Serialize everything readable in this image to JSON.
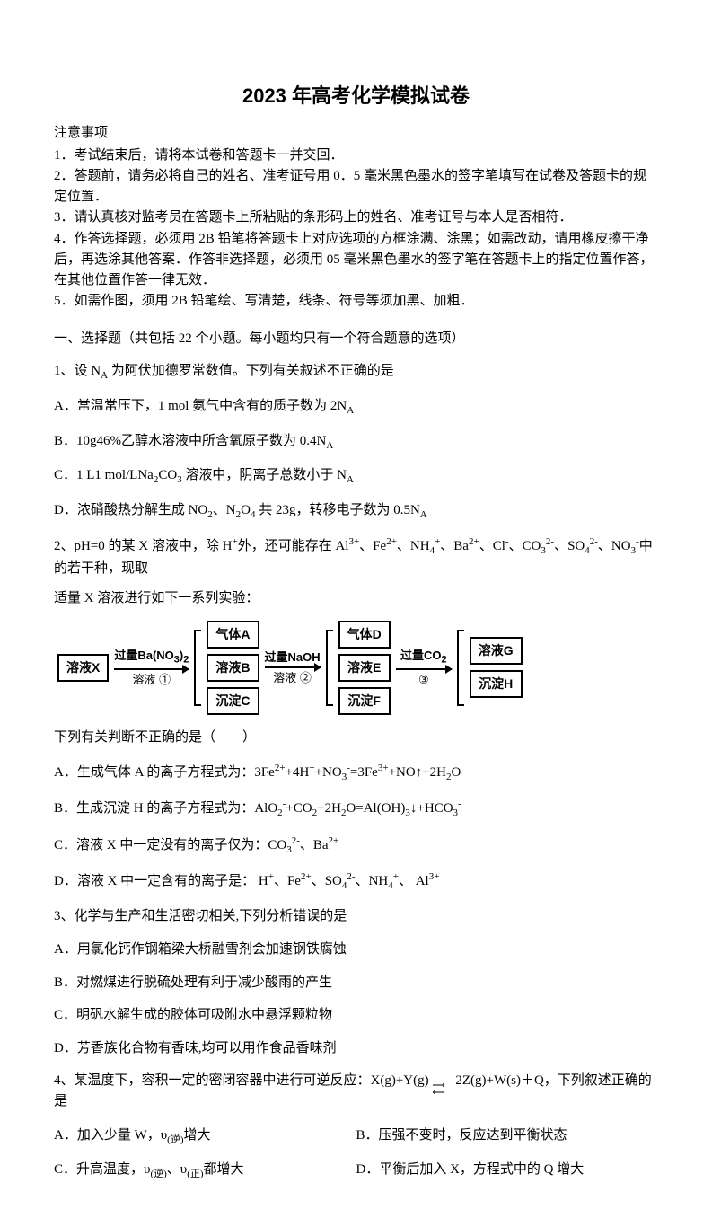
{
  "title": "2023 年高考化学模拟试卷",
  "notice_head": "注意事项",
  "notices": [
    "1．考试结束后，请将本试卷和答题卡一并交回．",
    "2．答题前，请务必将自己的姓名、准考证号用 0．5 毫米黑色墨水的签字笔填写在试卷及答题卡的规定位置．",
    "3．请认真核对监考员在答题卡上所粘贴的条形码上的姓名、准考证号与本人是否相符．",
    "4．作答选择题，必须用 2B 铅笔将答题卡上对应选项的方框涂满、涂黑；如需改动，请用橡皮擦干净后，再选涂其他答案．作答非选择题，必须用 05 毫米黑色墨水的签字笔在答题卡上的指定位置作答，在其他位置作答一律无效．",
    "5．如需作图，须用 2B 铅笔绘、写清楚，线条、符号等须加黑、加粗．"
  ],
  "section1_head": "一、选择题（共包括 22 个小题。每小题均只有一个符合题意的选项）",
  "q1": {
    "stem": "1、设 N<sub>A</sub> 为阿伏加德罗常数值。下列有关叙述不正确的是",
    "A": "A．常温常压下，1 mol 氨气中含有的质子数为 2N<sub>A</sub>",
    "B": "B．10g46%乙醇水溶液中所含氧原子数为 0.4N<sub>A</sub>",
    "C": "C．1 L1 mol/LNa<sub>2</sub>CO<sub>3</sub> 溶液中，阴离子总数小于 N<sub>A</sub>",
    "D": "D．浓硝酸热分解生成 NO<sub>2</sub>、N<sub>2</sub>O<sub>4</sub> 共 23g，转移电子数为 0.5N<sub>A</sub>"
  },
  "q2": {
    "stem1": "2、pH=0 的某 X 溶液中，除 H<sup>+</sup>外，还可能存在 Al<sup>3+</sup>、Fe<sup>2+</sup>、NH<sub>4</sub><sup>+</sup>、Ba<sup>2+</sup>、Cl<sup>-</sup>、CO<sub>3</sub><sup>2-</sup>、SO<sub>4</sub><sup>2-</sup>、NO<sub>3</sub><sup>-</sup>中的若干种，现取",
    "stem2": "适量 X 溶液进行如下一系列实验：",
    "flow": {
      "start": "溶液X",
      "arrow1_top": "过量Ba(NO<sub>3</sub>)<sub>2</sub>",
      "arrow1_bot": "溶液 ①",
      "col1": [
        "气体A",
        "溶液B",
        "沉淀C"
      ],
      "arrow2_top": "过量NaOH",
      "arrow2_bot": "溶液 ②",
      "col2": [
        "气体D",
        "溶液E",
        "沉淀F"
      ],
      "arrow3_top": "过量CO<sub>2</sub>",
      "arrow3_bot": "③",
      "col3": [
        "溶液G",
        "沉淀H"
      ]
    },
    "tail": "下列有关判断不正确的是（　　）",
    "A": "A．生成气体 A 的离子方程式为：3Fe<sup>2+</sup>+4H<sup>+</sup>+NO<sub>3</sub><sup>-</sup>=3Fe<sup>3+</sup>+NO↑+2H<sub>2</sub>O",
    "B": "B．生成沉淀 H 的离子方程式为：AlO<sub>2</sub><sup>-</sup>+CO<sub>2</sub>+2H<sub>2</sub>O=Al(OH)<sub>3</sub>↓+HCO<sub>3</sub><sup>-</sup>",
    "C": "C．溶液 X 中一定没有的离子仅为：CO<sub>3</sub><sup>2-</sup>、Ba<sup>2+</sup>",
    "D": "D．溶液 X 中一定含有的离子是： H<sup>+</sup>、Fe<sup>2+</sup>、SO<sub>4</sub><sup>2-</sup>、NH<sub>4</sub><sup>+</sup>、 Al<sup>3+</sup>"
  },
  "q3": {
    "stem": "3、化学与生产和生活密切相关,下列分析错误的是",
    "A": "A．用氯化钙作钢箱梁大桥融雪剂会加速钢铁腐蚀",
    "B": "B．对燃煤进行脱硫处理有利于减少酸雨的产生",
    "C": "C．明矾水解生成的胶体可吸附水中悬浮颗粒物",
    "D": "D．芳香族化合物有香味,均可以用作食品香味剂"
  },
  "q4": {
    "stem": "4、某温度下，容积一定的密闭容器中进行可逆反应：X(g)+Y(g)&nbsp;<span style='position:relative;display:inline-block;width:26px;'><span style='position:absolute;left:0;top:-6px;font-size:10px;'>⟶</span><span style='position:absolute;left:0;top:2px;font-size:10px;'>⟵</span></span>2Z(g)+W(s)＋Q，下列叙述正确的是",
    "A": "A．加入少量 W，υ<sub>(逆)</sub>增大",
    "B": "B．压强不变时，反应达到平衡状态",
    "C": "C．升高温度，υ<sub>(逆)</sub>、υ<sub>(正)</sub>都增大",
    "D": "D．平衡后加入 X，方程式中的 Q 增大"
  }
}
